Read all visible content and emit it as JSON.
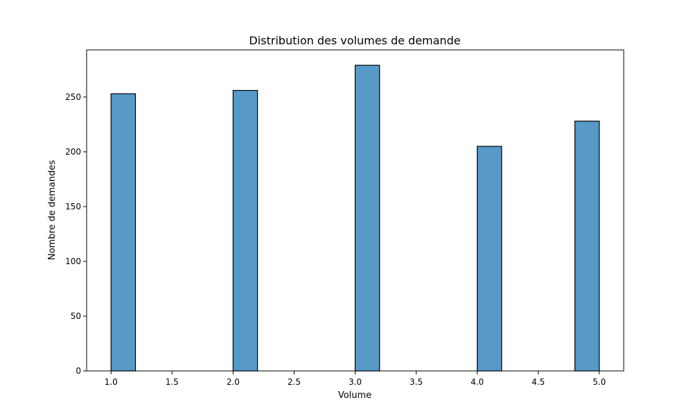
{
  "chart_data": {
    "type": "bar",
    "title": "Distribution des volumes de demande",
    "xlabel": "Volume",
    "ylabel": "Nombre de demandes",
    "bar_color": "#5799c7",
    "bin_width": 0.2,
    "bars": [
      {
        "x_start": 1.0,
        "value": 253
      },
      {
        "x_start": 2.0,
        "value": 256
      },
      {
        "x_start": 3.0,
        "value": 279
      },
      {
        "x_start": 4.0,
        "value": 205
      },
      {
        "x_start": 4.8,
        "value": 228
      }
    ],
    "xlim": [
      0.8,
      5.2
    ],
    "ylim": [
      0,
      293
    ],
    "x_ticks": [
      1.0,
      1.5,
      2.0,
      2.5,
      3.0,
      3.5,
      4.0,
      4.5,
      5.0
    ],
    "x_tick_labels": [
      "1.0",
      "1.5",
      "2.0",
      "2.5",
      "3.0",
      "3.5",
      "4.0",
      "4.5",
      "5.0"
    ],
    "y_ticks": [
      0,
      50,
      100,
      150,
      200,
      250
    ],
    "y_tick_labels": [
      "0",
      "50",
      "100",
      "150",
      "200",
      "250"
    ],
    "grid": false,
    "legend": "none"
  }
}
